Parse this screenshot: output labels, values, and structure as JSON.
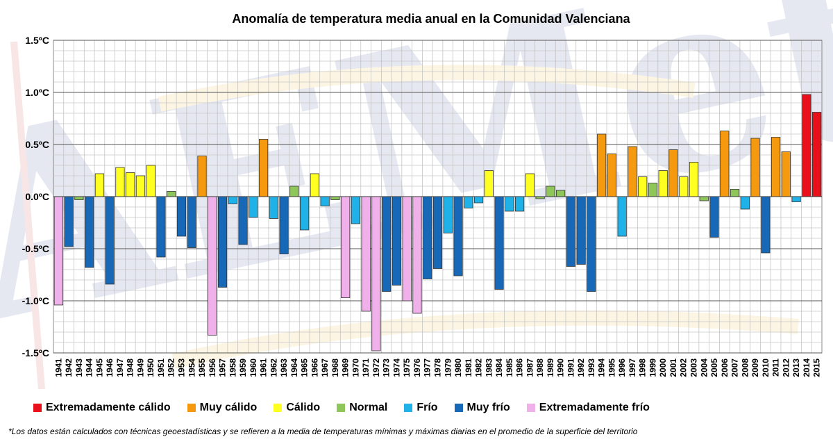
{
  "chart_data": {
    "type": "bar",
    "title": "Anomalía de temperatura media anual en la Comunidad Valenciana",
    "y_unit": "°C",
    "ylim": [
      -1.5,
      1.5
    ],
    "yticks": [
      1.5,
      1.0,
      0.5,
      0.0,
      -0.5,
      -1.0,
      -1.5
    ],
    "ytick_labels": [
      "1.5ºC",
      "1.0ºC",
      "0.5ºC",
      "0.0ºC",
      "-0.5ºC",
      "-1.0ºC",
      "-1.5ºC"
    ],
    "grid": true,
    "legend_position": "bottom",
    "categories": [
      "1941",
      "1942",
      "1943",
      "1944",
      "1945",
      "1946",
      "1947",
      "1948",
      "1949",
      "1950",
      "1951",
      "1952",
      "1953",
      "1954",
      "1955",
      "1956",
      "1957",
      "1958",
      "1959",
      "1960",
      "1961",
      "1962",
      "1963",
      "1964",
      "1965",
      "1966",
      "1967",
      "1968",
      "1969",
      "1970",
      "1971",
      "1972",
      "1973",
      "1974",
      "1975",
      "1976",
      "1977",
      "1978",
      "1979",
      "1980",
      "1981",
      "1982",
      "1983",
      "1984",
      "1985",
      "1986",
      "1987",
      "1988",
      "1989",
      "1990",
      "1991",
      "1992",
      "1993",
      "1994",
      "1995",
      "1996",
      "1997",
      "1998",
      "1999",
      "2000",
      "2001",
      "2002",
      "2003",
      "2004",
      "2005",
      "2006",
      "2007",
      "2008",
      "2009",
      "2010",
      "2011",
      "2012",
      "2013",
      "2014",
      "2015"
    ],
    "values": [
      -1.04,
      -0.48,
      -0.03,
      -0.68,
      0.22,
      -0.84,
      0.28,
      0.23,
      0.2,
      0.3,
      -0.58,
      0.05,
      -0.38,
      -0.49,
      0.39,
      -1.33,
      -0.87,
      -0.07,
      -0.46,
      -0.2,
      0.55,
      -0.21,
      -0.55,
      0.1,
      -0.32,
      0.22,
      -0.09,
      -0.03,
      -0.97,
      -0.26,
      -1.1,
      -1.48,
      -0.91,
      -0.85,
      -1.0,
      -1.12,
      -0.79,
      -0.69,
      -0.35,
      -0.76,
      -0.11,
      -0.06,
      0.25,
      -0.89,
      -0.14,
      -0.14,
      0.22,
      -0.02,
      0.1,
      0.06,
      -0.67,
      -0.65,
      -0.91,
      0.6,
      0.41,
      -0.38,
      0.48,
      0.19,
      0.13,
      0.25,
      0.45,
      0.19,
      0.33,
      -0.04,
      -0.39,
      0.63,
      0.07,
      -0.12,
      0.56,
      -0.54,
      0.57,
      0.43,
      -0.05,
      0.98,
      0.81
    ],
    "classes": [
      "EF",
      "MF",
      "N",
      "MF",
      "C",
      "MF",
      "C",
      "C",
      "C",
      "C",
      "MF",
      "N",
      "MF",
      "MF",
      "MC",
      "EF",
      "MF",
      "F",
      "MF",
      "F",
      "MC",
      "F",
      "MF",
      "N",
      "F",
      "C",
      "F",
      "N",
      "EF",
      "F",
      "EF",
      "EF",
      "MF",
      "MF",
      "EF",
      "EF",
      "MF",
      "MF",
      "F",
      "MF",
      "F",
      "F",
      "C",
      "MF",
      "F",
      "F",
      "C",
      "N",
      "N",
      "N",
      "MF",
      "MF",
      "MF",
      "MC",
      "MC",
      "F",
      "MC",
      "C",
      "N",
      "C",
      "MC",
      "C",
      "C",
      "N",
      "MF",
      "MC",
      "N",
      "F",
      "MC",
      "MF",
      "MC",
      "MC",
      "F",
      "EC",
      "EC"
    ],
    "legend": [
      {
        "key": "EC",
        "label": "Extremadamente cálido",
        "color": "#e8101a"
      },
      {
        "key": "MC",
        "label": "Muy cálido",
        "color": "#f59a0f"
      },
      {
        "key": "C",
        "label": "Cálido",
        "color": "#ffff22"
      },
      {
        "key": "N",
        "label": "Normal",
        "color": "#8fc65a"
      },
      {
        "key": "F",
        "label": "Frío",
        "color": "#1fb2e8"
      },
      {
        "key": "MF",
        "label": "Muy frío",
        "color": "#1769b8"
      },
      {
        "key": "EF",
        "label": "Extremadamente frío",
        "color": "#f0b0ea"
      }
    ],
    "footnote": "*Los datos están calculados con técnicas geoestadísticas y se refieren a la media de temperaturas mínimas y máximas diarias en el promedio de la superficie del territorio"
  },
  "watermark": {
    "text": "AEMet"
  }
}
